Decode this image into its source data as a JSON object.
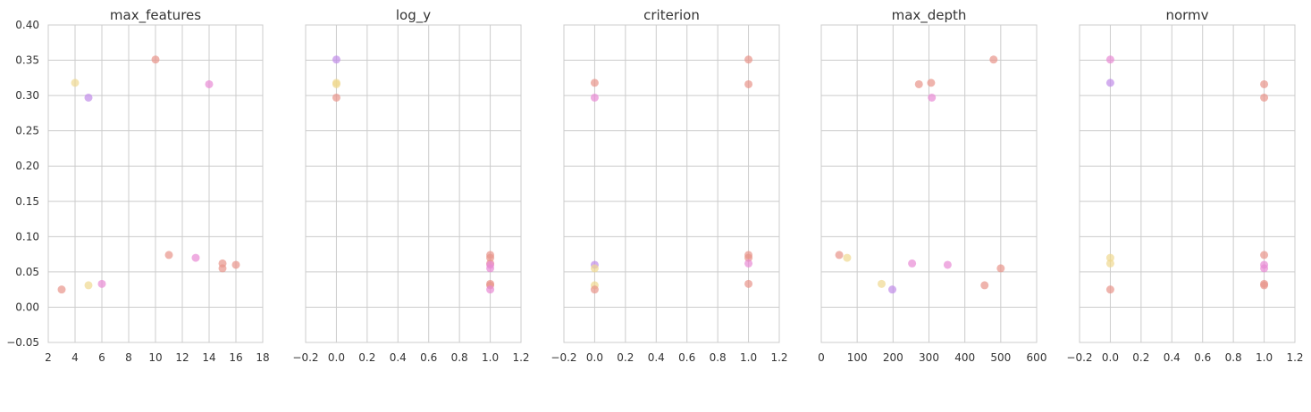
{
  "chart_data": [
    {
      "type": "scatter",
      "title": "max_features",
      "xlim": [
        2,
        18
      ],
      "ylim": [
        -0.05,
        0.4
      ],
      "xticks": [
        "2",
        "4",
        "6",
        "8",
        "10",
        "12",
        "14",
        "16",
        "18"
      ],
      "yticks": [
        "−0.05",
        "0.00",
        "0.05",
        "0.10",
        "0.15",
        "0.20",
        "0.25",
        "0.30",
        "0.35",
        "0.40"
      ],
      "grid": true,
      "points": [
        {
          "x": 3,
          "y": 0.025,
          "color": "#e8948a"
        },
        {
          "x": 4,
          "y": 0.318,
          "color": "#f0d890"
        },
        {
          "x": 5,
          "y": 0.297,
          "color": "#c08ce8"
        },
        {
          "x": 5,
          "y": 0.031,
          "color": "#f0d890"
        },
        {
          "x": 6,
          "y": 0.033,
          "color": "#e88ad4"
        },
        {
          "x": 10,
          "y": 0.351,
          "color": "#e8948a"
        },
        {
          "x": 11,
          "y": 0.074,
          "color": "#e8948a"
        },
        {
          "x": 13,
          "y": 0.07,
          "color": "#e88ad4"
        },
        {
          "x": 14,
          "y": 0.316,
          "color": "#e88ad4"
        },
        {
          "x": 15,
          "y": 0.062,
          "color": "#e8948a"
        },
        {
          "x": 15,
          "y": 0.055,
          "color": "#e8948a"
        },
        {
          "x": 16,
          "y": 0.06,
          "color": "#e8948a"
        }
      ]
    },
    {
      "type": "scatter",
      "title": "log_y",
      "xlim": [
        -0.2,
        1.2
      ],
      "ylim": [
        -0.05,
        0.4
      ],
      "xticks": [
        "−0.2",
        "0.0",
        "0.2",
        "0.4",
        "0.6",
        "0.8",
        "1.0",
        "1.2"
      ],
      "grid": true,
      "points": [
        {
          "x": 0,
          "y": 0.351,
          "color": "#c08ce8"
        },
        {
          "x": 0,
          "y": 0.318,
          "color": "#f0d890"
        },
        {
          "x": 0,
          "y": 0.316,
          "color": "#f0d890"
        },
        {
          "x": 0,
          "y": 0.297,
          "color": "#e8948a"
        },
        {
          "x": 1,
          "y": 0.074,
          "color": "#e8948a"
        },
        {
          "x": 1,
          "y": 0.07,
          "color": "#e8948a"
        },
        {
          "x": 1,
          "y": 0.062,
          "color": "#e8948a"
        },
        {
          "x": 1,
          "y": 0.06,
          "color": "#e88ad4"
        },
        {
          "x": 1,
          "y": 0.055,
          "color": "#e88ad4"
        },
        {
          "x": 1,
          "y": 0.033,
          "color": "#e8948a"
        },
        {
          "x": 1,
          "y": 0.031,
          "color": "#e8948a"
        },
        {
          "x": 1,
          "y": 0.025,
          "color": "#e88ad4"
        }
      ]
    },
    {
      "type": "scatter",
      "title": "criterion",
      "xlim": [
        -0.2,
        1.2
      ],
      "ylim": [
        -0.05,
        0.4
      ],
      "xticks": [
        "−0.2",
        "0.0",
        "0.2",
        "0.4",
        "0.6",
        "0.8",
        "1.0",
        "1.2"
      ],
      "grid": true,
      "points": [
        {
          "x": 0,
          "y": 0.318,
          "color": "#e8948a"
        },
        {
          "x": 0,
          "y": 0.297,
          "color": "#e88ad4"
        },
        {
          "x": 0,
          "y": 0.06,
          "color": "#c08ce8"
        },
        {
          "x": 0,
          "y": 0.055,
          "color": "#f0d890"
        },
        {
          "x": 0,
          "y": 0.031,
          "color": "#f0d890"
        },
        {
          "x": 0,
          "y": 0.025,
          "color": "#e8948a"
        },
        {
          "x": 1,
          "y": 0.351,
          "color": "#e8948a"
        },
        {
          "x": 1,
          "y": 0.316,
          "color": "#e8948a"
        },
        {
          "x": 1,
          "y": 0.074,
          "color": "#e8948a"
        },
        {
          "x": 1,
          "y": 0.07,
          "color": "#e8948a"
        },
        {
          "x": 1,
          "y": 0.062,
          "color": "#e88ad4"
        },
        {
          "x": 1,
          "y": 0.033,
          "color": "#e8948a"
        }
      ]
    },
    {
      "type": "scatter",
      "title": "max_depth",
      "xlim": [
        0,
        600
      ],
      "ylim": [
        -0.05,
        0.4
      ],
      "xticks": [
        "0",
        "100",
        "200",
        "300",
        "400",
        "500",
        "600"
      ],
      "grid": true,
      "points": [
        {
          "x": 50,
          "y": 0.074,
          "color": "#e8948a"
        },
        {
          "x": 72,
          "y": 0.07,
          "color": "#f0d890"
        },
        {
          "x": 168,
          "y": 0.033,
          "color": "#f0d890"
        },
        {
          "x": 198,
          "y": 0.025,
          "color": "#c08ce8"
        },
        {
          "x": 253,
          "y": 0.062,
          "color": "#e88ad4"
        },
        {
          "x": 272,
          "y": 0.316,
          "color": "#e8948a"
        },
        {
          "x": 306,
          "y": 0.318,
          "color": "#e8948a"
        },
        {
          "x": 308,
          "y": 0.297,
          "color": "#e88ad4"
        },
        {
          "x": 352,
          "y": 0.06,
          "color": "#e88ad4"
        },
        {
          "x": 455,
          "y": 0.031,
          "color": "#e8948a"
        },
        {
          "x": 480,
          "y": 0.351,
          "color": "#e8948a"
        },
        {
          "x": 500,
          "y": 0.055,
          "color": "#e8948a"
        }
      ]
    },
    {
      "type": "scatter",
      "title": "normv",
      "xlim": [
        -0.2,
        1.2
      ],
      "ylim": [
        -0.05,
        0.4
      ],
      "xticks": [
        "−0.2",
        "0.0",
        "0.2",
        "0.4",
        "0.6",
        "0.8",
        "1.0",
        "1.2"
      ],
      "grid": true,
      "points": [
        {
          "x": 0,
          "y": 0.351,
          "color": "#e88ad4"
        },
        {
          "x": 0,
          "y": 0.318,
          "color": "#c08ce8"
        },
        {
          "x": 0,
          "y": 0.07,
          "color": "#f0d890"
        },
        {
          "x": 0,
          "y": 0.062,
          "color": "#f0d890"
        },
        {
          "x": 0,
          "y": 0.025,
          "color": "#e8948a"
        },
        {
          "x": 1,
          "y": 0.316,
          "color": "#e8948a"
        },
        {
          "x": 1,
          "y": 0.297,
          "color": "#e8948a"
        },
        {
          "x": 1,
          "y": 0.074,
          "color": "#e8948a"
        },
        {
          "x": 1,
          "y": 0.06,
          "color": "#e88ad4"
        },
        {
          "x": 1,
          "y": 0.055,
          "color": "#e88ad4"
        },
        {
          "x": 1,
          "y": 0.033,
          "color": "#e8948a"
        },
        {
          "x": 1,
          "y": 0.031,
          "color": "#e8948a"
        }
      ]
    }
  ]
}
